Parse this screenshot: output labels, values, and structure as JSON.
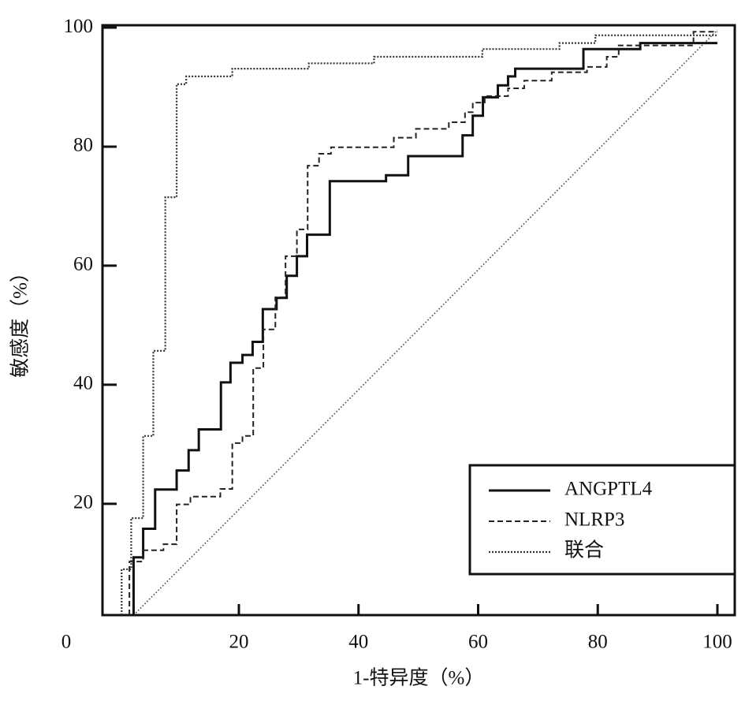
{
  "chart_data": {
    "type": "line",
    "x_label": "1-特异度（%）",
    "y_label": "敏感度（%）",
    "origin_label": "0",
    "xlim": [
      -2.8,
      102.9
    ],
    "ylim": [
      1.3,
      100.4
    ],
    "xticks": [
      20,
      40,
      60,
      80,
      100
    ],
    "yticks": [
      20,
      40,
      60,
      80,
      100
    ],
    "legend": "lower right",
    "series": [
      {
        "name": "ANGPTL4",
        "color": "#111111",
        "style": "solid",
        "x": [
          2.4,
          2.4,
          4,
          4,
          6,
          6,
          9.6,
          9.6,
          11.6,
          11.6,
          13.3,
          13.3,
          17,
          17,
          18.6,
          18.6,
          20.6,
          20.6,
          22.3,
          22.3,
          24,
          24,
          26.3,
          26.3,
          28,
          28,
          29.7,
          29.7,
          31.4,
          31.4,
          35.2,
          35.2,
          44.6,
          44.6,
          48.3,
          48.3,
          57.4,
          57.4,
          59.1,
          59.1,
          60.8,
          60.8,
          63.3,
          63.3,
          65,
          65,
          66.2,
          66.2,
          77.6,
          77.6,
          87.1,
          87.1,
          100
        ],
        "values": [
          1.3,
          11,
          11,
          15.8,
          15.8,
          22.4,
          22.4,
          25.6,
          25.6,
          29,
          29,
          32.5,
          32.5,
          40.4,
          40.4,
          43.7,
          43.7,
          45,
          45,
          47.2,
          47.2,
          52.7,
          52.7,
          54.6,
          54.6,
          58.3,
          58.3,
          61.6,
          61.6,
          65.2,
          65.2,
          74.2,
          74.2,
          75.2,
          75.2,
          78.4,
          78.4,
          81.9,
          81.9,
          85.2,
          85.2,
          88.3,
          88.3,
          90.3,
          90.3,
          91.8,
          91.8,
          93.1,
          93.1,
          96.4,
          96.4,
          97.4,
          97.4
        ]
      },
      {
        "name": "NLRP3",
        "color": "#222222",
        "style": "dashed",
        "x": [
          1.7,
          1.7,
          4,
          4,
          7.4,
          7.4,
          9.6,
          9.6,
          11.9,
          11.9,
          16.9,
          16.9,
          18.9,
          18.9,
          20.6,
          20.6,
          22.4,
          22.4,
          24.1,
          24.1,
          26.1,
          26.1,
          27.8,
          27.8,
          29.7,
          29.7,
          31.5,
          31.5,
          33.4,
          33.4,
          35.4,
          35.4,
          45.9,
          45.9,
          49.6,
          49.6,
          55.1,
          55.1,
          57.8,
          57.8,
          59.1,
          59.1,
          61.1,
          61.1,
          65,
          65,
          67.7,
          67.7,
          72.3,
          72.3,
          78.2,
          78.2,
          81.5,
          81.5,
          83.5,
          83.5,
          96,
          96,
          100
        ],
        "values": [
          1.3,
          10.3,
          10.3,
          12.2,
          12.2,
          13.2,
          13.2,
          19.9,
          19.9,
          21.2,
          21.2,
          22.5,
          22.5,
          30.2,
          30.2,
          31.4,
          31.4,
          42.8,
          42.8,
          49.3,
          49.3,
          54.7,
          54.7,
          61.6,
          61.6,
          66.1,
          66.1,
          76.8,
          76.8,
          78.8,
          78.8,
          79.9,
          79.9,
          81.5,
          81.5,
          83,
          83,
          84.1,
          84.1,
          85.8,
          85.8,
          87.4,
          87.4,
          88.5,
          88.5,
          89.8,
          89.8,
          91.1,
          91.1,
          92.5,
          92.5,
          93.4,
          93.4,
          95.1,
          95.1,
          97,
          97,
          99.3,
          99.3
        ]
      },
      {
        "name": "联合",
        "color": "#333333",
        "style": "dotted",
        "x": [
          0.4,
          0.4,
          2,
          2,
          4,
          4,
          5.7,
          5.7,
          7.7,
          7.7,
          9.6,
          9.6,
          11.2,
          11.2,
          18.9,
          18.9,
          31.7,
          31.7,
          42.6,
          42.6,
          60.7,
          60.7,
          73.6,
          73.6,
          79.6,
          79.6,
          100
        ],
        "values": [
          1.3,
          9,
          9,
          17.6,
          17.6,
          31.4,
          31.4,
          45.7,
          45.7,
          71.5,
          71.5,
          90.5,
          90.5,
          91.8,
          91.8,
          93.1,
          93.1,
          94,
          94,
          95.1,
          95.1,
          96.4,
          96.4,
          97.4,
          97.4,
          98.7,
          98.7
        ]
      }
    ],
    "reference_line": {
      "x": [
        2.4,
        100
      ],
      "values": [
        1.3,
        99.6
      ]
    }
  }
}
